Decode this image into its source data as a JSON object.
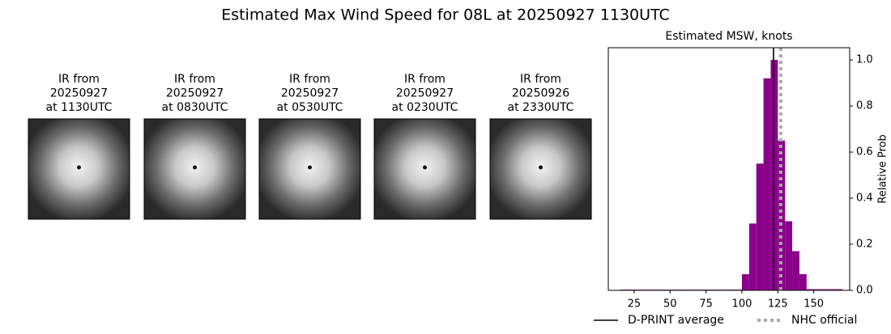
{
  "title": "Estimated Max Wind Speed for 08L at 20250927 1130UTC",
  "images": [
    {
      "label": [
        "IR from",
        "20250927",
        "at 1130UTC"
      ]
    },
    {
      "label": [
        "IR from",
        "20250927",
        "at 0830UTC"
      ]
    },
    {
      "label": [
        "IR from",
        "20250927",
        "at 0530UTC"
      ]
    },
    {
      "label": [
        "IR from",
        "20250927",
        "at 0230UTC"
      ]
    },
    {
      "label": [
        "IR from",
        "20250926",
        "at 2330UTC"
      ]
    }
  ],
  "chart_data": {
    "type": "histogram",
    "title": "Estimated MSW, knots",
    "ylabel": "Relative Prob",
    "color": "#8b008b",
    "bins": [
      15,
      20,
      25,
      30,
      35,
      40,
      45,
      50,
      55,
      60,
      65,
      70,
      75,
      80,
      85,
      90,
      95,
      100,
      105,
      110,
      115,
      120,
      125,
      130,
      135,
      140,
      145,
      150,
      155,
      160,
      165,
      170
    ],
    "values": [
      0.003,
      0.003,
      0.003,
      0.003,
      0.003,
      0.003,
      0.003,
      0.003,
      0.003,
      0.003,
      0.003,
      0.003,
      0.003,
      0.003,
      0.003,
      0.003,
      0.003,
      0.07,
      0.29,
      0.55,
      0.92,
      1.0,
      0.65,
      0.3,
      0.17,
      0.07,
      0.005,
      0.005,
      0.005,
      0.005,
      0.005
    ],
    "xlim": [
      7,
      175
    ],
    "ylim": [
      0,
      1.053
    ],
    "xticks": [
      25,
      50,
      75,
      100,
      125,
      150
    ],
    "yticks": [
      {
        "value": 0,
        "label": "0.0"
      },
      0.2,
      0.4,
      0.6,
      0.8,
      {
        "value": 1,
        "label": "1.0"
      }
    ],
    "lines": [
      {
        "name": "D-PRINT average",
        "value": 122,
        "color": "#000000",
        "style": "solid"
      },
      {
        "name": "NHC official",
        "value": 127,
        "color": "#aaaaaa",
        "style": "dotted"
      }
    ]
  }
}
